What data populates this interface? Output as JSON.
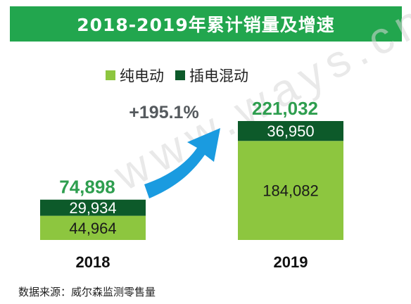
{
  "header": {
    "title": "2018-2019年累计销量及增速"
  },
  "source_note": "数据来源：威尔森监测零售量",
  "watermark": "www.ways.cn",
  "colors": {
    "banner": "#22a64e",
    "bev": "#8dc63f",
    "phev": "#0d5a2a",
    "total": "#2e9e4f",
    "arrow": "#1a9be0",
    "growth": "#555a5e"
  },
  "chart_data": {
    "type": "bar",
    "stacked": true,
    "title": "2018-2019年累计销量及增速",
    "categories": [
      "2018",
      "2019"
    ],
    "series": [
      {
        "name": "纯电动",
        "values": [
          44964,
          184082
        ],
        "labels": [
          "44,964",
          "184,082"
        ]
      },
      {
        "name": "插电混动",
        "values": [
          29934,
          36950
        ],
        "labels": [
          "29,934",
          "36,950"
        ]
      }
    ],
    "totals": [
      "74,898",
      "221,032"
    ],
    "total_values": [
      74898,
      221032
    ],
    "growth_label": "+195.1%",
    "legend": "top-center",
    "grid": false,
    "ylim": [
      0,
      221032
    ]
  }
}
